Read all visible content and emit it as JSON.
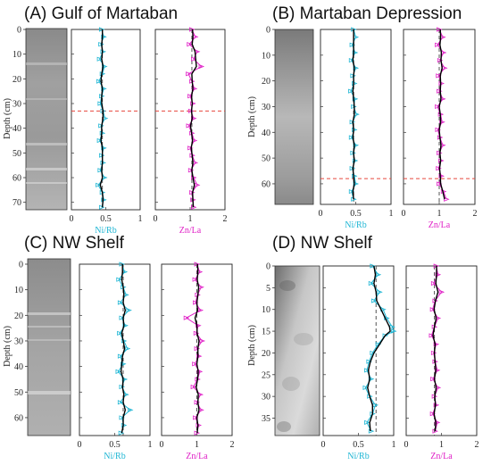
{
  "chart_data": [
    {
      "type": "line",
      "title": "(A) Gulf of Martaban",
      "ylabel": "Depth (cm)",
      "ylim": [
        0,
        73
      ],
      "yticks": [
        0,
        10,
        20,
        30,
        40,
        50,
        60,
        70
      ],
      "boundary_depth": 33,
      "tracks": [
        {
          "xlabel": "Ni/Rb",
          "xlim": [
            0,
            1
          ],
          "xticks": [
            "0",
            "0.5",
            "1"
          ],
          "xtick_values": [
            0,
            0.5,
            1
          ],
          "mean": 0.45,
          "color": "#1fb6d4",
          "smooth_color": "#000000",
          "depth": [
            0,
            3,
            6,
            9,
            12,
            15,
            18,
            21,
            24,
            27,
            30,
            33,
            36,
            39,
            42,
            45,
            48,
            51,
            54,
            57,
            60,
            63,
            66,
            69,
            72
          ],
          "values": [
            0.44,
            0.47,
            0.43,
            0.46,
            0.41,
            0.48,
            0.45,
            0.4,
            0.47,
            0.44,
            0.42,
            0.46,
            0.49,
            0.43,
            0.45,
            0.41,
            0.47,
            0.44,
            0.46,
            0.42,
            0.48,
            0.39,
            0.45,
            0.47,
            0.44
          ],
          "smooth": [
            0.45,
            0.45,
            0.44,
            0.45,
            0.44,
            0.46,
            0.44,
            0.43,
            0.45,
            0.44,
            0.44,
            0.46,
            0.46,
            0.44,
            0.44,
            0.43,
            0.45,
            0.45,
            0.45,
            0.44,
            0.45,
            0.42,
            0.45,
            0.46,
            0.45
          ]
        },
        {
          "xlabel": "Zn/La",
          "xlim": [
            0,
            2
          ],
          "xticks": [
            "0",
            "1",
            "2"
          ],
          "xtick_values": [
            0,
            1,
            2
          ],
          "mean": 1.05,
          "color": "#e021c7",
          "smooth_color": "#000000",
          "depth": [
            0,
            3,
            6,
            9,
            12,
            15,
            18,
            21,
            24,
            27,
            30,
            33,
            36,
            39,
            42,
            45,
            48,
            51,
            54,
            57,
            60,
            63,
            66,
            69,
            72
          ],
          "values": [
            1.05,
            1.15,
            0.98,
            1.2,
            1.1,
            1.32,
            0.95,
            1.05,
            1.12,
            1.0,
            1.08,
            1.02,
            1.1,
            0.96,
            1.05,
            1.12,
            1.0,
            1.06,
            1.14,
            1.02,
            1.1,
            1.2,
            1.05,
            1.08,
            1.1
          ],
          "smooth": [
            1.07,
            1.08,
            1.06,
            1.14,
            1.16,
            1.18,
            1.05,
            1.06,
            1.08,
            1.04,
            1.06,
            1.04,
            1.06,
            1.01,
            1.04,
            1.07,
            1.03,
            1.06,
            1.08,
            1.05,
            1.08,
            1.12,
            1.07,
            1.08,
            1.09
          ]
        }
      ]
    },
    {
      "type": "line",
      "title": "(B) Martaban Depression",
      "ylabel": "Depth (cm)",
      "ylim": [
        0,
        68
      ],
      "yticks": [
        0,
        10,
        20,
        30,
        40,
        50,
        60
      ],
      "boundary_depth": 58,
      "tracks": [
        {
          "xlabel": "Ni/Rb",
          "xlim": [
            0,
            1
          ],
          "xticks": [
            "0",
            "0.5",
            "1"
          ],
          "xtick_values": [
            0,
            0.5,
            1
          ],
          "mean": 0.47,
          "color": "#1fb6d4",
          "smooth_color": "#000000",
          "depth": [
            0,
            3,
            6,
            9,
            12,
            15,
            18,
            21,
            24,
            27,
            30,
            33,
            36,
            39,
            42,
            45,
            48,
            51,
            54,
            57,
            60,
            63,
            66
          ],
          "values": [
            0.47,
            0.5,
            0.45,
            0.49,
            0.44,
            0.5,
            0.46,
            0.48,
            0.43,
            0.49,
            0.47,
            0.51,
            0.45,
            0.48,
            0.44,
            0.5,
            0.46,
            0.49,
            0.45,
            0.48,
            0.5,
            0.44,
            0.47
          ],
          "smooth": [
            0.47,
            0.47,
            0.47,
            0.47,
            0.46,
            0.48,
            0.47,
            0.47,
            0.46,
            0.47,
            0.48,
            0.48,
            0.46,
            0.47,
            0.46,
            0.48,
            0.47,
            0.48,
            0.46,
            0.47,
            0.48,
            0.46,
            0.47
          ]
        },
        {
          "xlabel": "Zn/La",
          "xlim": [
            0,
            2
          ],
          "xticks": [
            "0",
            "1",
            "2"
          ],
          "xtick_values": [
            0,
            1,
            2
          ],
          "mean": 1.0,
          "color": "#e021c7",
          "smooth_color": "#000000",
          "depth": [
            0,
            3,
            6,
            9,
            12,
            15,
            18,
            21,
            24,
            27,
            30,
            33,
            36,
            39,
            42,
            45,
            48,
            51,
            54,
            57,
            60,
            63,
            66
          ],
          "values": [
            1.0,
            1.1,
            0.95,
            1.12,
            1.02,
            1.15,
            0.98,
            1.06,
            1.0,
            1.1,
            0.95,
            1.04,
            1.08,
            0.96,
            1.02,
            1.1,
            1.0,
            1.05,
            0.98,
            1.06,
            1.0,
            1.12,
            1.2
          ],
          "smooth": [
            1.03,
            1.04,
            1.02,
            1.06,
            1.05,
            1.08,
            1.03,
            1.04,
            1.03,
            1.05,
            1.0,
            1.03,
            1.04,
            1.0,
            1.02,
            1.05,
            1.02,
            1.04,
            1.01,
            1.03,
            1.04,
            1.1,
            1.15
          ]
        }
      ]
    },
    {
      "type": "line",
      "title": "(C) NW Shelf",
      "ylabel": "Depth (cm)",
      "ylim": [
        0,
        67
      ],
      "yticks": [
        0,
        10,
        20,
        30,
        40,
        50,
        60
      ],
      "tracks": [
        {
          "xlabel": "Ni/Rb",
          "xlim": [
            0,
            1
          ],
          "xticks": [
            "0",
            "0.5",
            "1"
          ],
          "xtick_values": [
            0,
            0.5,
            1
          ],
          "mean": 0.62,
          "color": "#1fb6d4",
          "smooth_color": "#000000",
          "depth": [
            0,
            3,
            6,
            9,
            12,
            15,
            18,
            21,
            24,
            27,
            30,
            33,
            36,
            39,
            42,
            45,
            48,
            51,
            54,
            57,
            60,
            63,
            66
          ],
          "values": [
            0.6,
            0.64,
            0.56,
            0.62,
            0.66,
            0.58,
            0.7,
            0.6,
            0.65,
            0.57,
            0.63,
            0.68,
            0.58,
            0.62,
            0.55,
            0.64,
            0.6,
            0.66,
            0.58,
            0.72,
            0.6,
            0.63,
            0.59
          ],
          "smooth": [
            0.61,
            0.61,
            0.6,
            0.62,
            0.63,
            0.62,
            0.65,
            0.62,
            0.63,
            0.6,
            0.62,
            0.64,
            0.61,
            0.6,
            0.59,
            0.62,
            0.61,
            0.63,
            0.62,
            0.65,
            0.62,
            0.62,
            0.6
          ]
        },
        {
          "xlabel": "Zn/La",
          "xlim": [
            0,
            2
          ],
          "xticks": [
            "0",
            "1",
            "2"
          ],
          "xtick_values": [
            0,
            1,
            2
          ],
          "mean": 1.0,
          "color": "#e021c7",
          "smooth_color": "#000000",
          "depth": [
            0,
            3,
            6,
            9,
            12,
            15,
            18,
            21,
            24,
            27,
            30,
            33,
            36,
            39,
            42,
            45,
            48,
            51,
            54,
            57,
            60,
            63,
            66
          ],
          "values": [
            1.0,
            1.08,
            0.95,
            1.12,
            1.02,
            0.96,
            1.1,
            0.7,
            1.04,
            0.98,
            1.15,
            1.0,
            1.06,
            0.94,
            1.08,
            1.02,
            0.9,
            1.1,
            1.0,
            1.12,
            0.96,
            1.05,
            1.0
          ],
          "smooth": [
            1.02,
            1.03,
            1.01,
            1.05,
            1.03,
            1.0,
            1.02,
            0.95,
            1.0,
            1.01,
            1.06,
            1.03,
            1.03,
            1.0,
            1.04,
            1.02,
            0.98,
            1.04,
            1.03,
            1.06,
            1.0,
            1.03,
            1.01
          ]
        }
      ]
    },
    {
      "type": "line",
      "title": "(D) NW Shelf",
      "ylabel": "Depth (cm)",
      "ylim": [
        0,
        39
      ],
      "yticks": [
        0,
        5,
        10,
        15,
        20,
        25,
        30,
        35
      ],
      "tracks": [
        {
          "xlabel": "Ni/Rb",
          "xlim": [
            0,
            1
          ],
          "xticks": [
            "0",
            "0.5",
            "1"
          ],
          "xtick_values": [
            0,
            0.5,
            1
          ],
          "mean": 0.75,
          "color": "#1fb6d4",
          "smooth_color": "#000000",
          "depth": [
            0,
            2,
            4,
            6,
            8,
            10,
            12,
            14,
            15,
            16,
            18,
            20,
            22,
            24,
            26,
            28,
            30,
            32,
            34,
            36,
            38
          ],
          "values": [
            0.7,
            0.78,
            0.68,
            0.8,
            0.72,
            0.85,
            0.9,
            0.98,
            1.0,
            0.88,
            0.78,
            0.7,
            0.65,
            0.62,
            0.68,
            0.6,
            0.66,
            0.74,
            0.7,
            0.62,
            0.68
          ],
          "smooth": [
            0.72,
            0.74,
            0.72,
            0.75,
            0.76,
            0.82,
            0.88,
            0.94,
            0.95,
            0.88,
            0.8,
            0.72,
            0.67,
            0.64,
            0.66,
            0.63,
            0.66,
            0.7,
            0.7,
            0.66,
            0.67
          ]
        },
        {
          "xlabel": "Zn/La",
          "xlim": [
            0,
            2
          ],
          "xticks": [
            "0",
            "1",
            "2"
          ],
          "xtick_values": [
            0,
            1,
            2
          ],
          "mean": 0.8,
          "color": "#e021c7",
          "smooth_color": "#000000",
          "depth": [
            0,
            2,
            4,
            6,
            8,
            10,
            12,
            14,
            16,
            18,
            20,
            22,
            24,
            26,
            28,
            30,
            32,
            34,
            36,
            38
          ],
          "values": [
            0.85,
            0.9,
            0.78,
            1.0,
            0.82,
            0.75,
            0.9,
            0.8,
            0.72,
            0.85,
            0.78,
            0.82,
            0.88,
            0.76,
            0.9,
            0.8,
            0.85,
            0.75,
            0.88,
            0.82
          ],
          "smooth": [
            0.86,
            0.86,
            0.84,
            0.9,
            0.83,
            0.79,
            0.85,
            0.8,
            0.76,
            0.82,
            0.8,
            0.82,
            0.84,
            0.8,
            0.85,
            0.81,
            0.83,
            0.79,
            0.84,
            0.82
          ]
        }
      ]
    }
  ]
}
